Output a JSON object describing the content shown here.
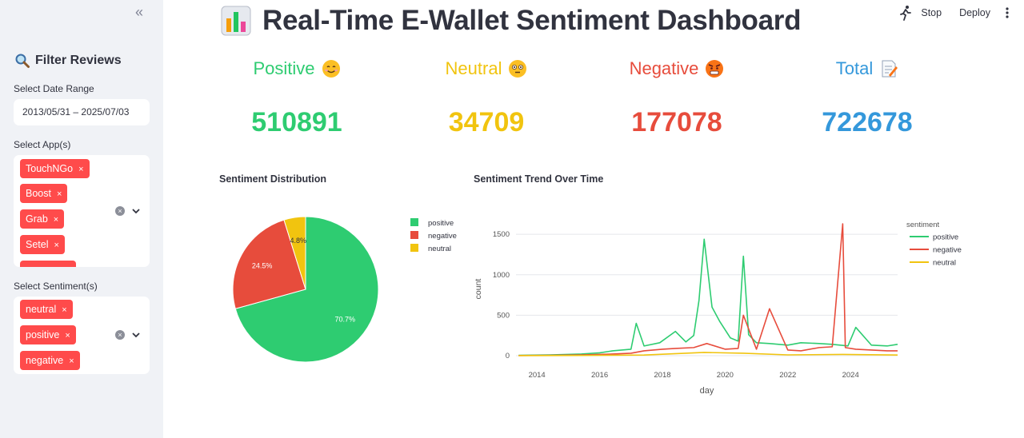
{
  "app": {
    "title": "Real-Time E-Wallet Sentiment Dashboard",
    "toolbar": {
      "stop_label": "Stop",
      "deploy_label": "Deploy"
    }
  },
  "sidebar": {
    "collapse_label": "«",
    "title": "Filter Reviews",
    "date_label": "Select Date Range",
    "date_value": "2013/05/31 – 2025/07/03",
    "apps_label": "Select App(s)",
    "apps": [
      "TouchNGo",
      "Boost",
      "Grab",
      "Setel"
    ],
    "sentiment_label": "Select Sentiment(s)",
    "sentiments": [
      "neutral",
      "positive",
      "negative"
    ],
    "remove_glyph": "×",
    "clear_glyph": "×"
  },
  "kpis": [
    {
      "label": "Positive",
      "value": "510891",
      "color": "#2ecc71",
      "icon": "smiling-face-icon"
    },
    {
      "label": "Neutral",
      "value": "34709",
      "color": "#f1c40f",
      "icon": "flushed-face-icon"
    },
    {
      "label": "Negative",
      "value": "177078",
      "color": "#e74c3c",
      "icon": "angry-face-icon"
    },
    {
      "label": "Total",
      "value": "722678",
      "color": "#3498db",
      "icon": "memo-icon"
    }
  ],
  "colors": {
    "positive": "#2ecc71",
    "negative": "#e74c3c",
    "neutral": "#f1c40f",
    "accent": "#ff4b4b"
  },
  "chart_data": [
    {
      "type": "pie",
      "title": "Sentiment Distribution",
      "categories": [
        "positive",
        "negative",
        "neutral"
      ],
      "values": [
        70.7,
        24.5,
        4.8
      ],
      "labels": [
        "70.7%",
        "24.5%",
        "4.8%"
      ],
      "legend": "right"
    },
    {
      "type": "line",
      "title": "Sentiment Trend Over Time",
      "xlabel": "day",
      "ylabel": "count",
      "legend_title": "sentiment",
      "legend": "right",
      "grid": true,
      "xlim": [
        "2013-05-31",
        "2025-07-03"
      ],
      "ylim": [
        0,
        1650
      ],
      "xticks": [
        "2014",
        "2016",
        "2018",
        "2020",
        "2022",
        "2024"
      ],
      "yticks": [
        "0",
        "500",
        "1000",
        "1500"
      ],
      "series": [
        {
          "name": "positive",
          "x": [
            "2013-06",
            "2014-06",
            "2015-06",
            "2016-01",
            "2016-06",
            "2017-01",
            "2017-03",
            "2017-06",
            "2017-12",
            "2018-06",
            "2018-10",
            "2019-01",
            "2019-03",
            "2019-05",
            "2019-08",
            "2019-11",
            "2020-03",
            "2020-06",
            "2020-08",
            "2020-10",
            "2021-01",
            "2021-06",
            "2022-01",
            "2022-06",
            "2023-01",
            "2023-06",
            "2023-12",
            "2024-03",
            "2024-09",
            "2025-03",
            "2025-07"
          ],
          "values": [
            5,
            10,
            20,
            35,
            60,
            80,
            400,
            120,
            160,
            300,
            170,
            250,
            680,
            1440,
            600,
            420,
            220,
            180,
            1230,
            260,
            160,
            150,
            130,
            160,
            150,
            140,
            120,
            350,
            130,
            120,
            140
          ]
        },
        {
          "name": "negative",
          "x": [
            "2013-06",
            "2014-06",
            "2015-06",
            "2016-06",
            "2017-01",
            "2017-06",
            "2018-01",
            "2018-06",
            "2019-01",
            "2019-06",
            "2020-01",
            "2020-06",
            "2020-08",
            "2021-01",
            "2021-06",
            "2022-01",
            "2022-06",
            "2023-01",
            "2023-06",
            "2023-10",
            "2023-11",
            "2024-03",
            "2024-09",
            "2025-03",
            "2025-07"
          ],
          "values": [
            2,
            5,
            10,
            20,
            30,
            60,
            80,
            90,
            100,
            150,
            80,
            90,
            500,
            80,
            580,
            70,
            60,
            100,
            110,
            1630,
            100,
            80,
            70,
            60,
            60
          ]
        },
        {
          "name": "neutral",
          "x": [
            "2013-06",
            "2015-06",
            "2017-06",
            "2019-05",
            "2020-08",
            "2022-01",
            "2023-10",
            "2025-07"
          ],
          "values": [
            1,
            3,
            8,
            40,
            30,
            10,
            15,
            8
          ]
        }
      ]
    }
  ]
}
